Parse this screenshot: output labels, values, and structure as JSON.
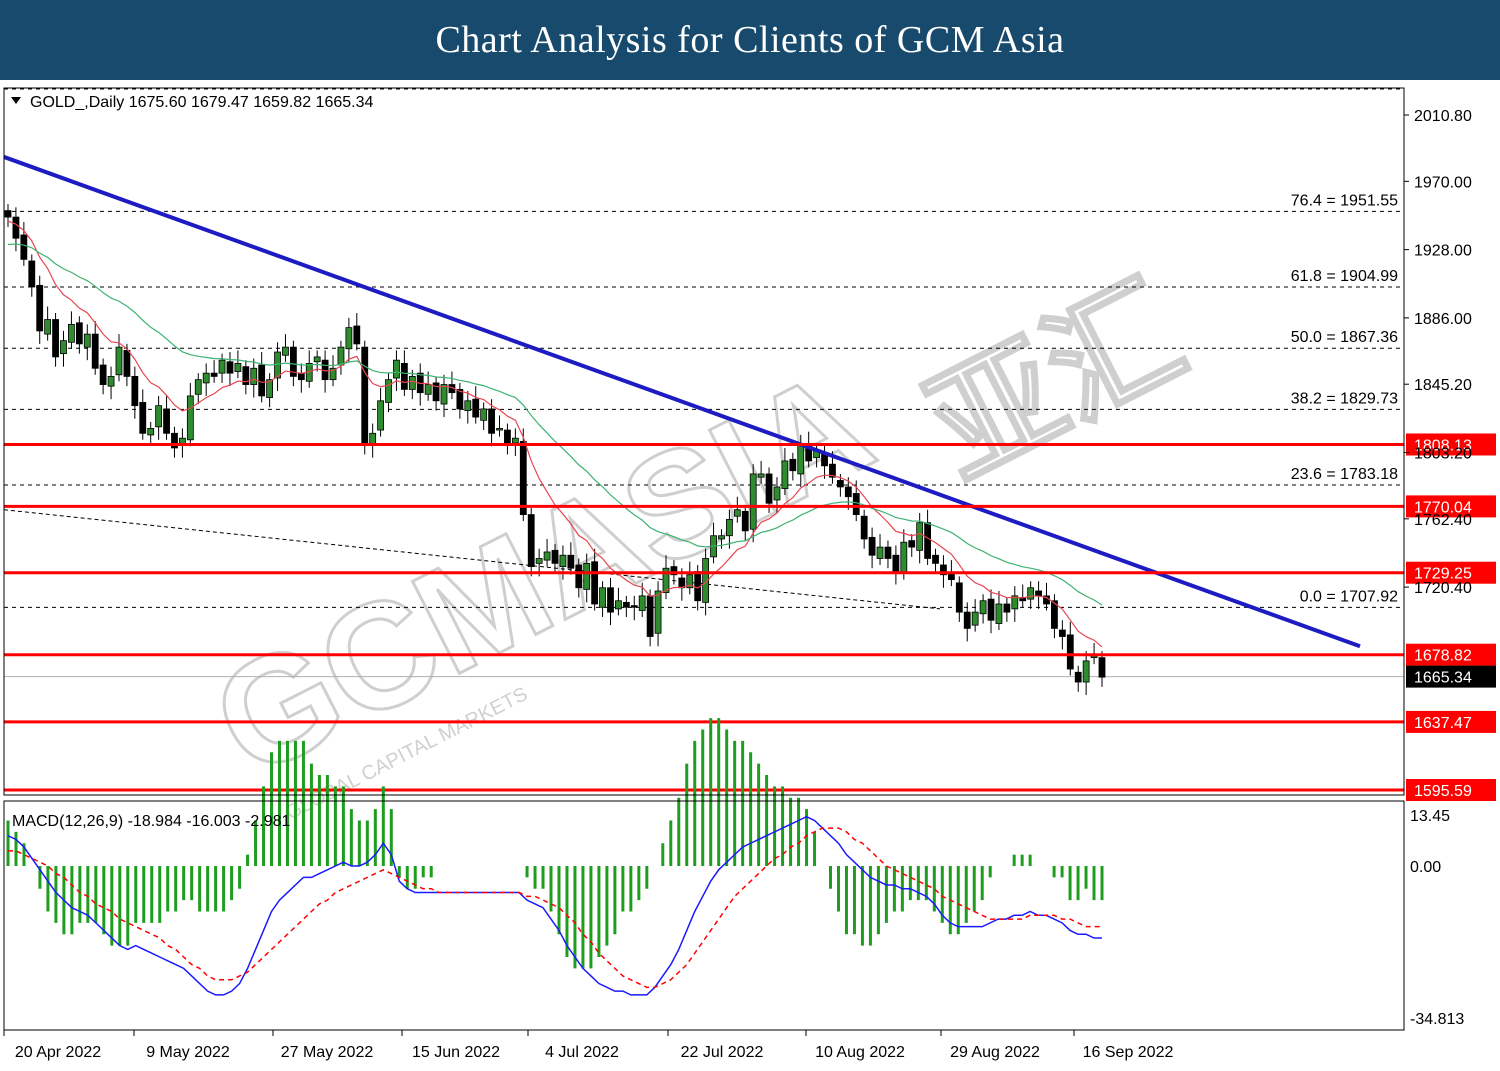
{
  "banner": {
    "title": "Chart Analysis for Clients of GCM Asia"
  },
  "colors": {
    "banner": "#174a6d",
    "candle_up": "#2e8b2e",
    "candle_down": "#000000",
    "ma_fast": "#e8454f",
    "ma_slow": "#3cb371",
    "trendline": "#1c1cc2",
    "level": "#ff0000",
    "macd_line": "#1a1aff",
    "signal_line": "#ff0000",
    "histogram": "#1f9d1f",
    "current_price_tag": "#000000"
  },
  "chart_info": {
    "dropdown_icon": "triangle-down-icon",
    "symbol_label": "GOLD_,Daily",
    "ohlc": "1675.60 1679.47 1659.82 1665.34"
  },
  "watermark": {
    "brand": "GCMASIA",
    "tagline": "GLOBAL CAPITAL MARKETS",
    "chinese": "亚汇"
  },
  "macd_info": {
    "label": "MACD(12,26,9) -18.984 -16.003 -2.981"
  },
  "chart_data": [
    {
      "type": "candlestick",
      "symbol": "GOLD_",
      "timeframe": "Daily",
      "ylim": [
        1595.59,
        2010.8
      ],
      "y_ticks": [
        "2010.80",
        "1970.00",
        "1928.00",
        "1886.00",
        "1845.20",
        "1803.20",
        "1762.40",
        "1720.40",
        "1665.34"
      ],
      "x_tick_labels": [
        "20 Apr 2022",
        "9 May 2022",
        "27 May 2022",
        "15 Jun 2022",
        "4 Jul 2022",
        "22 Jul 2022",
        "10 Aug 2022",
        "29 Aug 2022",
        "16 Sep 2022"
      ],
      "fib_levels": [
        {
          "label": "76.4 = 1951.55",
          "value": 1951.55
        },
        {
          "label": "61.8 = 1904.99",
          "value": 1904.99
        },
        {
          "label": "50.0 = 1867.36",
          "value": 1867.36
        },
        {
          "label": "38.2 = 1829.73",
          "value": 1829.73
        },
        {
          "label": "23.6 = 1783.18",
          "value": 1783.18
        },
        {
          "label": "0.0 = 1707.92",
          "value": 1707.92
        }
      ],
      "sr_levels": [
        {
          "label": "1808.13",
          "value": 1808.13
        },
        {
          "label": "1770.04",
          "value": 1770.04
        },
        {
          "label": "1729.25",
          "value": 1729.25
        },
        {
          "label": "1678.82",
          "value": 1678.82
        },
        {
          "label": "1637.47",
          "value": 1637.47
        },
        {
          "label": "1595.59",
          "value": 1595.59
        }
      ],
      "current_price": {
        "label": "1665.34",
        "value": 1665.34
      },
      "trendline": {
        "start_price": 1985,
        "end_price": 1684
      },
      "close": [
        1948,
        1935,
        1922,
        1905,
        1878,
        1885,
        1862,
        1872,
        1882,
        1870,
        1876,
        1855,
        1845,
        1850,
        1868,
        1850,
        1832,
        1815,
        1818,
        1832,
        1815,
        1806,
        1812,
        1838,
        1848,
        1852,
        1850,
        1860,
        1852,
        1858,
        1845,
        1855,
        1838,
        1848,
        1865,
        1868,
        1850,
        1848,
        1858,
        1862,
        1848,
        1855,
        1868,
        1880,
        1870,
        1808,
        1815,
        1835,
        1848,
        1860,
        1842,
        1850,
        1840,
        1845,
        1835,
        1845,
        1840,
        1830,
        1835,
        1825,
        1830,
        1815,
        1818,
        1808,
        1812,
        1765,
        1733,
        1738,
        1742,
        1735,
        1740,
        1732,
        1720,
        1735,
        1710,
        1720,
        1705,
        1712,
        1708,
        1708,
        1715,
        1690,
        1718,
        1732,
        1728,
        1720,
        1728,
        1712,
        1738,
        1752,
        1752,
        1762,
        1768,
        1755,
        1790,
        1790,
        1772,
        1782,
        1798,
        1792,
        1808,
        1798,
        1804,
        1795,
        1788,
        1782,
        1776,
        1765,
        1750,
        1740,
        1745,
        1738,
        1730,
        1748,
        1745,
        1760,
        1738,
        1735,
        1728,
        1725,
        1705,
        1695,
        1705,
        1712,
        1700,
        1710,
        1705,
        1715,
        1712,
        1720,
        1715,
        1710,
        1695,
        1690,
        1670,
        1662,
        1675,
        1678,
        1665
      ],
      "ma_fast_start": 1945,
      "ma_slow_start": 1930
    },
    {
      "type": "macd",
      "label": "MACD(12,26,9)",
      "values": {
        "macd": -18.984,
        "signal": -16.003,
        "histogram": -2.981
      },
      "ylim": [
        -34.813,
        13.45
      ],
      "y_ticks": [
        "13.45",
        "0.00",
        "-34.813"
      ],
      "macd_line": [
        8,
        7,
        5,
        2,
        -1,
        -4,
        -7,
        -9,
        -11,
        -12,
        -13,
        -15,
        -17,
        -19,
        -21,
        -22,
        -21,
        -22,
        -23,
        -24,
        -25,
        -26,
        -27,
        -29,
        -31,
        -33,
        -34,
        -34,
        -33,
        -31,
        -27,
        -22,
        -17,
        -12,
        -9,
        -7,
        -5,
        -3,
        -3,
        -2,
        -1,
        0,
        1,
        0,
        0,
        1,
        3,
        6,
        3,
        -4,
        -6,
        -7,
        -7,
        -7,
        -7,
        -7,
        -7,
        -7,
        -7,
        -7,
        -7,
        -7,
        -7,
        -7,
        -7,
        -9,
        -10,
        -11,
        -14,
        -17,
        -21,
        -24,
        -27,
        -29,
        -31,
        -32,
        -33,
        -33,
        -34,
        -34,
        -34,
        -32,
        -29,
        -26,
        -22,
        -17,
        -12,
        -8,
        -4,
        -1,
        1,
        3,
        5,
        6,
        7,
        8,
        9,
        10,
        11,
        12,
        13,
        12,
        10,
        8,
        6,
        3,
        1,
        -1,
        -3,
        -4,
        -5,
        -5,
        -6,
        -6,
        -7,
        -8,
        -10,
        -13,
        -15,
        -16,
        -16,
        -16,
        -16,
        -15,
        -14,
        -14,
        -13,
        -13,
        -12,
        -13,
        -13,
        -14,
        -15,
        -17,
        -18,
        -18,
        -19,
        -19
      ],
      "signal_line": [
        4,
        4,
        3,
        2,
        1,
        0,
        -2,
        -3,
        -5,
        -7,
        -8,
        -10,
        -11,
        -12,
        -14,
        -15,
        -16,
        -17,
        -18,
        -19,
        -21,
        -22,
        -24,
        -26,
        -27,
        -29,
        -30,
        -30,
        -30,
        -29,
        -28,
        -26,
        -24,
        -22,
        -20,
        -18,
        -16,
        -14,
        -12,
        -10,
        -9,
        -7,
        -6,
        -5,
        -4,
        -3,
        -2,
        -1,
        -2,
        -3,
        -4,
        -5,
        -6,
        -6,
        -7,
        -7,
        -7,
        -7,
        -7,
        -7,
        -7,
        -7,
        -7,
        -7,
        -7,
        -8,
        -8,
        -9,
        -10,
        -11,
        -13,
        -15,
        -18,
        -20,
        -23,
        -25,
        -27,
        -29,
        -30,
        -31,
        -32,
        -32,
        -31,
        -30,
        -28,
        -26,
        -23,
        -20,
        -17,
        -14,
        -11,
        -8,
        -6,
        -4,
        -2,
        0,
        2,
        3,
        5,
        6,
        8,
        9,
        10,
        10,
        10,
        9,
        7,
        6,
        4,
        2,
        0,
        -1,
        -2,
        -3,
        -4,
        -5,
        -6,
        -8,
        -9,
        -10,
        -11,
        -12,
        -13,
        -14,
        -14,
        -14,
        -14,
        -14,
        -13,
        -13,
        -13,
        -13,
        -14,
        -14,
        -15,
        -16,
        -16,
        -16
      ]
    }
  ]
}
